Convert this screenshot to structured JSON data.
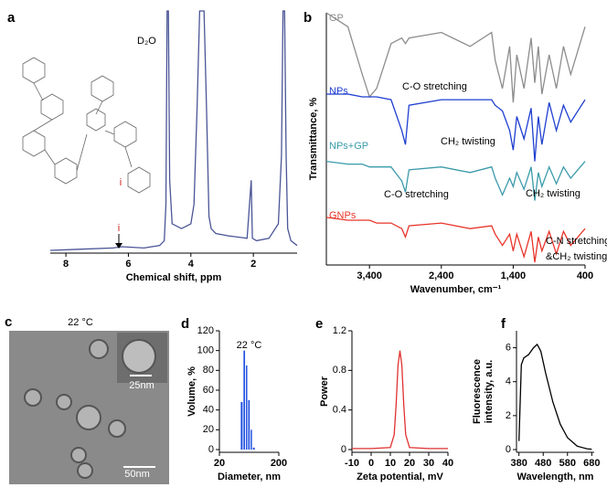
{
  "tem": {
    "panel_label": "c",
    "title": "22 °C",
    "inset_scale": "25nm",
    "scale": "50nm"
  },
  "chart_data": [
    {
      "type": "line",
      "panel_label": "a",
      "xlabel": "Chemical shift, ppm",
      "xlim": [
        8.5,
        0.6
      ],
      "xticks": [
        8,
        6,
        4,
        2
      ],
      "annotations": [
        "D₂O",
        "i",
        "i"
      ],
      "x": [
        8.5,
        7.5,
        6.5,
        6.2,
        5.5,
        5.0,
        4.85,
        4.8,
        4.76,
        4.72,
        4.68,
        4.6,
        4.3,
        4.0,
        3.9,
        3.8,
        3.72,
        3.65,
        3.58,
        3.5,
        3.42,
        3.35,
        3.2,
        2.8,
        2.2,
        2.07,
        2.03,
        1.9,
        1.5,
        1.2,
        1.1,
        1.05,
        1.0,
        0.95,
        0.9,
        0.8,
        0.6
      ],
      "series": [
        {
          "color": "#4a5596",
          "values": [
            1,
            1.5,
            2,
            2.5,
            2,
            3,
            5,
            20,
            100,
            100,
            30,
            12,
            10,
            12,
            20,
            60,
            100,
            100,
            100,
            60,
            15,
            10,
            8,
            7,
            6,
            30,
            6,
            5,
            6,
            12,
            40,
            100,
            100,
            40,
            10,
            5,
            3
          ]
        }
      ]
    },
    {
      "type": "line",
      "panel_label": "b",
      "xlabel": "Wavenumber, cm⁻¹",
      "ylabel": "Transmittance, %",
      "xlim": [
        4000,
        400
      ],
      "xticks": [
        {
          "value": 3400,
          "label": "3,400"
        },
        {
          "value": 2400,
          "label": "2,400"
        },
        {
          "value": 1400,
          "label": "1,400"
        },
        400
      ],
      "annotations": [
        "C-O stretching",
        "CH₂ twisting",
        "C-O stretching",
        "CH₂ twisting",
        "C-N stretching",
        "&CH₂ twisting"
      ],
      "x": [
        4000,
        3700,
        3500,
        3400,
        3300,
        3100,
        2950,
        2900,
        2850,
        2400,
        2000,
        1700,
        1650,
        1550,
        1450,
        1400,
        1350,
        1250,
        1150,
        1100,
        1050,
        1000,
        900,
        800,
        700,
        600,
        400
      ],
      "series": [
        {
          "name": "GP",
          "color": "#8c8c8c",
          "values": [
            97,
            92,
            75,
            67,
            70,
            86,
            88,
            86,
            88,
            90,
            85,
            90,
            80,
            70,
            85,
            65,
            82,
            70,
            88,
            72,
            85,
            68,
            82,
            70,
            85,
            75,
            92
          ]
        },
        {
          "name": "NPs",
          "color": "#1f3fd0",
          "values": [
            68,
            68,
            67,
            67,
            67,
            66,
            55,
            50,
            64,
            66,
            66,
            66,
            64,
            62,
            55,
            48,
            60,
            52,
            63,
            44,
            60,
            50,
            65,
            55,
            64,
            58,
            66
          ]
        },
        {
          "name": "NPs+GP",
          "color": "#3a9aaa",
          "values": [
            44,
            43,
            43,
            42,
            42,
            42,
            37,
            33,
            41,
            42,
            40,
            42,
            38,
            32,
            38,
            35,
            40,
            34,
            42,
            30,
            40,
            35,
            42,
            36,
            42,
            38,
            44
          ]
        },
        {
          "name": "GNPs",
          "color": "#e8342a",
          "values": [
            24,
            23,
            23,
            23,
            22,
            22,
            20,
            17,
            21,
            22,
            20,
            21,
            18,
            14,
            18,
            12,
            18,
            10,
            19,
            8,
            17,
            12,
            19,
            11,
            19,
            14,
            20
          ]
        }
      ]
    },
    {
      "type": "histogram",
      "panel_label": "d",
      "title": "22 °C",
      "xlabel": "Diameter, nm",
      "ylabel": "Volume, %",
      "xscale": "log",
      "xlim": [
        20,
        200
      ],
      "xticks": [
        20,
        200
      ],
      "ylim": [
        0,
        120
      ],
      "yticks": [
        0,
        20,
        40,
        60,
        80,
        100,
        120
      ],
      "color": "#1f4fe0",
      "bins": [
        45,
        50,
        55,
        60,
        66,
        72,
        80
      ],
      "values": [
        48,
        100,
        85,
        50,
        20,
        2
      ]
    },
    {
      "type": "line",
      "panel_label": "e",
      "xlabel": "Zeta potential, mV",
      "ylabel": "Power",
      "xlim": [
        -10,
        40
      ],
      "xticks": [
        -10,
        0,
        10,
        20,
        30,
        40
      ],
      "ylim": [
        0,
        1.2
      ],
      "yticks": [
        0,
        0.4,
        0.8,
        1.2
      ],
      "x": [
        -10,
        0,
        10,
        12,
        13,
        14,
        15,
        16,
        17,
        18,
        20,
        30,
        40
      ],
      "series": [
        {
          "color": "#e03030",
          "values": [
            0.01,
            0.01,
            0.02,
            0.15,
            0.45,
            0.85,
            1.0,
            0.85,
            0.45,
            0.15,
            0.02,
            0.01,
            0.01
          ]
        }
      ]
    },
    {
      "type": "line",
      "panel_label": "f",
      "xlabel": "Wavelength, nm",
      "ylabel": [
        "Fluorescence",
        "intensity, a.u."
      ],
      "xlim": [
        370,
        690
      ],
      "xticks": [
        380,
        480,
        580,
        680
      ],
      "ylim": [
        0,
        7
      ],
      "yticks": [
        0,
        2,
        4,
        6
      ],
      "x": [
        380,
        390,
        400,
        420,
        440,
        455,
        470,
        490,
        520,
        550,
        580,
        620,
        660,
        680
      ],
      "series": [
        {
          "color": "#000000",
          "values": [
            0.5,
            5.0,
            5.4,
            5.6,
            6.0,
            6.2,
            5.8,
            4.5,
            2.8,
            1.5,
            0.7,
            0.2,
            0.05,
            0.02
          ]
        }
      ]
    }
  ]
}
